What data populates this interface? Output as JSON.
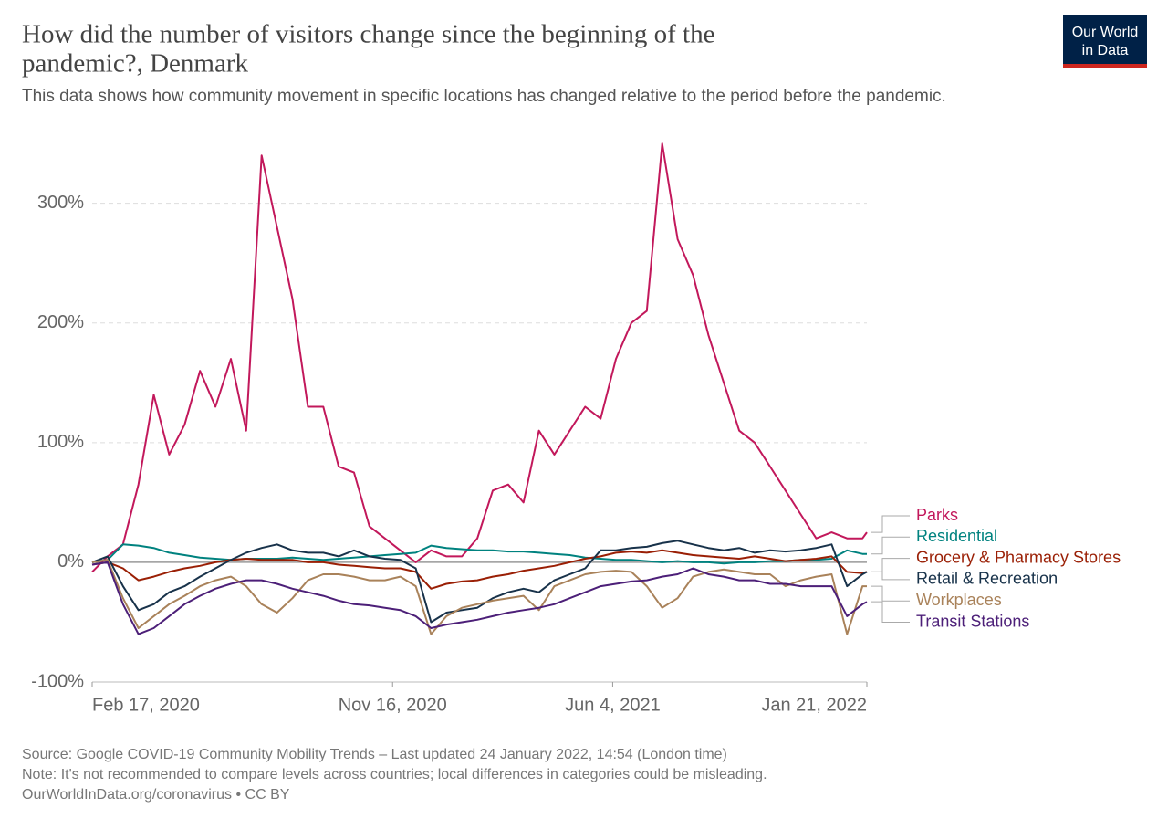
{
  "chart_data": {
    "type": "line",
    "title_lines": [
      "How did the number of visitors change since the beginning of the",
      "pandemic?, Denmark"
    ],
    "subtitle": "This data shows how community movement in specific locations has changed relative to the period before the pandemic.",
    "logo_lines": [
      "Our World",
      "in Data"
    ],
    "source": "Source: Google COVID-19 Community Mobility Trends – Last updated 24 January 2022, 14:54 (London time)",
    "note": "Note: It's not recommended to compare levels across countries; local differences in categories could be misleading.",
    "footer": "OurWorldInData.org/coronavirus • CC BY",
    "x": [
      "2020-02-17",
      "2020-03-02",
      "2020-03-16",
      "2020-03-30",
      "2020-04-13",
      "2020-04-27",
      "2020-05-11",
      "2020-05-25",
      "2020-06-08",
      "2020-06-22",
      "2020-07-06",
      "2020-07-20",
      "2020-08-03",
      "2020-08-17",
      "2020-08-31",
      "2020-09-14",
      "2020-09-28",
      "2020-10-12",
      "2020-10-26",
      "2020-11-09",
      "2020-11-23",
      "2020-12-07",
      "2020-12-21",
      "2021-01-04",
      "2021-01-18",
      "2021-02-01",
      "2021-02-15",
      "2021-03-01",
      "2021-03-15",
      "2021-03-29",
      "2021-04-12",
      "2021-04-26",
      "2021-05-10",
      "2021-05-24",
      "2021-06-07",
      "2021-06-21",
      "2021-07-05",
      "2021-07-19",
      "2021-08-02",
      "2021-08-16",
      "2021-08-30",
      "2021-09-13",
      "2021-09-27",
      "2021-10-11",
      "2021-10-25",
      "2021-11-08",
      "2021-11-22",
      "2021-12-06",
      "2021-12-20",
      "2022-01-03",
      "2022-01-17",
      "2022-01-21"
    ],
    "xlim": [
      "2020-02-17",
      "2022-01-21"
    ],
    "xticks": [
      {
        "value": "2020-02-17",
        "label": "Feb 17, 2020"
      },
      {
        "value": "2020-11-16",
        "label": "Nov 16, 2020"
      },
      {
        "value": "2021-06-04",
        "label": "Jun 4, 2021"
      },
      {
        "value": "2022-01-21",
        "label": "Jan 21, 2022"
      }
    ],
    "ylim": [
      -100,
      360
    ],
    "yticks": [
      {
        "value": -100,
        "label": "-100%"
      },
      {
        "value": 0,
        "label": "0%"
      },
      {
        "value": 100,
        "label": "100%"
      },
      {
        "value": 200,
        "label": "200%"
      },
      {
        "value": 300,
        "label": "300%"
      }
    ],
    "grid": true,
    "series": [
      {
        "name": "Parks",
        "color": "#c2185b",
        "values": [
          -8,
          5,
          15,
          65,
          140,
          90,
          115,
          160,
          130,
          170,
          110,
          340,
          280,
          220,
          130,
          130,
          80,
          75,
          30,
          20,
          10,
          0,
          10,
          5,
          5,
          20,
          60,
          65,
          50,
          110,
          90,
          110,
          130,
          120,
          170,
          200,
          210,
          350,
          270,
          240,
          190,
          150,
          110,
          100,
          80,
          60,
          40,
          20,
          25,
          20,
          20,
          25
        ]
      },
      {
        "name": "Residential",
        "color": "#00827f",
        "values": [
          0,
          2,
          15,
          14,
          12,
          8,
          6,
          4,
          3,
          2,
          3,
          3,
          3,
          4,
          3,
          2,
          3,
          4,
          5,
          6,
          7,
          8,
          14,
          12,
          11,
          10,
          10,
          9,
          9,
          8,
          7,
          6,
          4,
          3,
          2,
          2,
          1,
          0,
          1,
          0,
          0,
          -1,
          0,
          0,
          1,
          1,
          2,
          2,
          3,
          10,
          7,
          7
        ]
      },
      {
        "name": "Grocery & Pharmacy Stores",
        "color": "#9a1f05",
        "values": [
          -2,
          0,
          -5,
          -15,
          -12,
          -8,
          -5,
          -3,
          0,
          2,
          3,
          2,
          2,
          2,
          0,
          0,
          -2,
          -3,
          -4,
          -5,
          -5,
          -8,
          -22,
          -18,
          -16,
          -15,
          -12,
          -10,
          -7,
          -5,
          -3,
          0,
          3,
          5,
          8,
          9,
          8,
          10,
          8,
          6,
          5,
          4,
          3,
          5,
          3,
          1,
          2,
          3,
          5,
          -8,
          -9,
          -8
        ]
      },
      {
        "name": "Retail & Recreation",
        "color": "#18324a",
        "values": [
          0,
          5,
          -20,
          -40,
          -35,
          -25,
          -20,
          -12,
          -5,
          2,
          8,
          12,
          15,
          10,
          8,
          8,
          5,
          10,
          5,
          3,
          2,
          -5,
          -50,
          -42,
          -40,
          -38,
          -30,
          -25,
          -22,
          -25,
          -15,
          -10,
          -5,
          10,
          10,
          12,
          13,
          16,
          18,
          15,
          12,
          10,
          12,
          8,
          10,
          9,
          10,
          12,
          15,
          -20,
          -10,
          -8
        ]
      },
      {
        "name": "Workplaces",
        "color": "#a9825a",
        "values": [
          0,
          2,
          -30,
          -55,
          -45,
          -35,
          -28,
          -20,
          -15,
          -12,
          -20,
          -35,
          -42,
          -30,
          -15,
          -10,
          -10,
          -12,
          -15,
          -15,
          -12,
          -20,
          -60,
          -45,
          -38,
          -35,
          -32,
          -30,
          -28,
          -40,
          -20,
          -15,
          -10,
          -8,
          -7,
          -8,
          -20,
          -38,
          -30,
          -12,
          -8,
          -6,
          -8,
          -10,
          -10,
          -20,
          -15,
          -12,
          -10,
          -60,
          -20,
          -20
        ]
      },
      {
        "name": "Transit Stations",
        "color": "#4c1f78",
        "values": [
          -2,
          0,
          -35,
          -60,
          -55,
          -45,
          -35,
          -28,
          -22,
          -18,
          -15,
          -15,
          -18,
          -22,
          -25,
          -28,
          -32,
          -35,
          -36,
          -38,
          -40,
          -45,
          -55,
          -52,
          -50,
          -48,
          -45,
          -42,
          -40,
          -38,
          -35,
          -30,
          -25,
          -20,
          -18,
          -16,
          -15,
          -12,
          -10,
          -5,
          -10,
          -12,
          -15,
          -15,
          -18,
          -18,
          -20,
          -20,
          -20,
          -45,
          -35,
          -33
        ]
      }
    ]
  }
}
